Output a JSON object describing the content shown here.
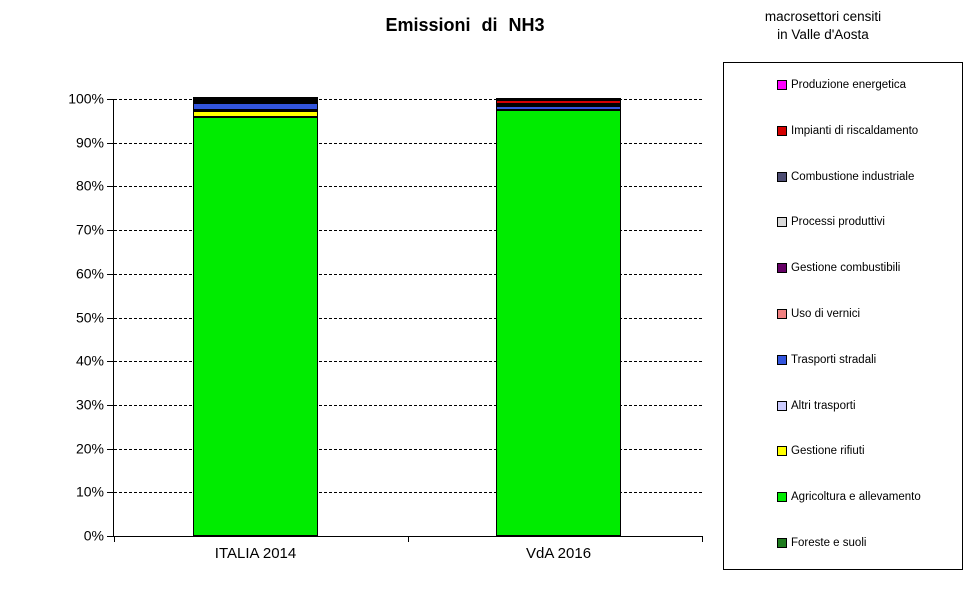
{
  "title": "Emissioni di NH3",
  "legend_header": {
    "line1": "macrosettori censiti",
    "line2": "in Valle d'Aosta"
  },
  "chart_data": {
    "type": "bar",
    "stacked": true,
    "units": "percent",
    "title": "Emissioni di NH3",
    "categories": [
      "ITALIA 2014",
      "VdA 2016"
    ],
    "series": [
      {
        "name": "Foreste e suoli",
        "color": "#1E7B1E",
        "values": [
          0.0,
          0.0
        ]
      },
      {
        "name": "Agricoltura e allevamento",
        "color": "#00EC00",
        "values": [
          95.8,
          97.4
        ]
      },
      {
        "name": "Gestione rifiuti",
        "color": "#FFFF00",
        "values": [
          1.4,
          0.05
        ]
      },
      {
        "name": "Altri trasporti",
        "color": "#CCCCFF",
        "values": [
          0.3,
          0.05
        ]
      },
      {
        "name": "Trasporti stradali",
        "color": "#3355DD",
        "values": [
          1.6,
          0.9
        ]
      },
      {
        "name": "Uso di vernici",
        "color": "#F08080",
        "values": [
          0.1,
          0.05
        ]
      },
      {
        "name": "Gestione combustibili",
        "color": "#660066",
        "values": [
          0.1,
          0.05
        ]
      },
      {
        "name": "Processi produttivi",
        "color": "#D9D9D9",
        "values": [
          0.1,
          0.1
        ]
      },
      {
        "name": "Combustione industriale",
        "color": "#4D4D73",
        "values": [
          0.2,
          0.2
        ]
      },
      {
        "name": "Impianti di riscaldamento",
        "color": "#D40000",
        "values": [
          0.3,
          0.9
        ]
      },
      {
        "name": "Produzione energetica",
        "color": "#FF00FF",
        "values": [
          0.1,
          0.3
        ]
      }
    ],
    "ylim": [
      0,
      100
    ],
    "yticks": [
      "0%",
      "10%",
      "20%",
      "30%",
      "40%",
      "50%",
      "60%",
      "70%",
      "80%",
      "90%",
      "100%"
    ],
    "grid": "horizontal-dashed",
    "legend_position": "right",
    "legend_order": "top-to-bottom reverse of stacking"
  }
}
